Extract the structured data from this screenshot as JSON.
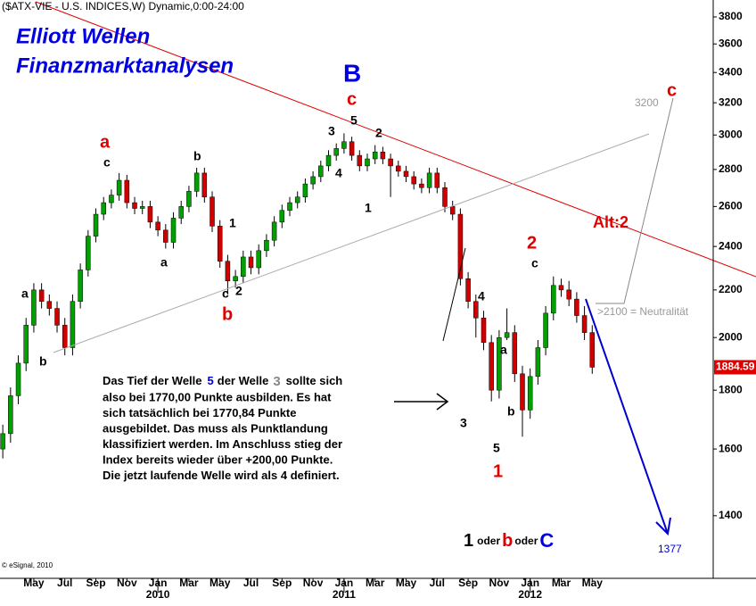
{
  "chart_data": {
    "type": "candlestick",
    "title": "($ATX-VIE - U.S. INDICES,W) Dynamic,0:00-24:00",
    "x": [
      2.0,
      2.5,
      3.0,
      3.5,
      4.0,
      4.5,
      5.0,
      5.5,
      6.0,
      6.5,
      7.0,
      7.5,
      8.0,
      8.5,
      9.0,
      9.5,
      10.0,
      10.5,
      11.0,
      11.5,
      12.0,
      12.5,
      13.0,
      13.5,
      14.0,
      14.5,
      15.0,
      15.5,
      16.0,
      16.5,
      17.0,
      17.5,
      18.0,
      18.5,
      19.0,
      19.5,
      20.0,
      20.5,
      21.0,
      21.5,
      22.0,
      22.5,
      23.0,
      23.5,
      24.0,
      24.5,
      25.0,
      25.5,
      26.0,
      26.5,
      27.0,
      27.5,
      28.0,
      28.5,
      29.0,
      29.5,
      30.0,
      30.5,
      31.0,
      31.5,
      32.0,
      32.5,
      33.0,
      33.5,
      34.0,
      34.5,
      35.0,
      35.5,
      36.0,
      36.5,
      37.0,
      37.5,
      38.0,
      38.5,
      39.0,
      39.5,
      40.0
    ],
    "open": [
      1600,
      1650,
      1780,
      1900,
      2050,
      2200,
      2150,
      2120,
      2050,
      1960,
      2150,
      2290,
      2450,
      2560,
      2620,
      2660,
      2740,
      2620,
      2590,
      2600,
      2520,
      2480,
      2420,
      2540,
      2600,
      2680,
      2780,
      2650,
      2500,
      2330,
      2240,
      2260,
      2350,
      2300,
      2380,
      2430,
      2520,
      2580,
      2620,
      2650,
      2720,
      2760,
      2820,
      2880,
      2920,
      2960,
      2880,
      2820,
      2860,
      2900,
      2860,
      2820,
      2790,
      2760,
      2720,
      2700,
      2780,
      2700,
      2600,
      2560,
      2250,
      2150,
      2080,
      1980,
      1800,
      2000,
      2020,
      1860,
      1730,
      1850,
      1960,
      2100,
      2220,
      2200,
      2160,
      2090,
      2020
    ],
    "high": [
      1680,
      1810,
      1930,
      2080,
      2230,
      2230,
      2180,
      2150,
      2080,
      2180,
      2320,
      2480,
      2590,
      2650,
      2690,
      2780,
      2770,
      2650,
      2630,
      2630,
      2550,
      2510,
      2570,
      2630,
      2710,
      2810,
      2810,
      2680,
      2530,
      2360,
      2290,
      2380,
      2380,
      2410,
      2460,
      2550,
      2610,
      2650,
      2680,
      2750,
      2790,
      2850,
      2910,
      2950,
      3010,
      2990,
      2910,
      2890,
      2940,
      2930,
      2890,
      2850,
      2820,
      2790,
      2750,
      2810,
      2810,
      2730,
      2630,
      2590,
      2280,
      2180,
      2110,
      2010,
      2030,
      2120,
      2050,
      1890,
      1880,
      1990,
      2130,
      2260,
      2250,
      2240,
      2190,
      2130,
      2050
    ],
    "low": [
      1570,
      1620,
      1750,
      1870,
      2020,
      2120,
      2090,
      2020,
      1930,
      1930,
      2120,
      2260,
      2420,
      2530,
      2590,
      2630,
      2590,
      2560,
      2560,
      2490,
      2450,
      2390,
      2390,
      2510,
      2570,
      2650,
      2620,
      2470,
      2300,
      2180,
      2210,
      2230,
      2270,
      2270,
      2350,
      2400,
      2490,
      2550,
      2590,
      2620,
      2690,
      2730,
      2790,
      2850,
      2890,
      2850,
      2790,
      2790,
      2830,
      2830,
      2650,
      2760,
      2730,
      2690,
      2670,
      2670,
      2670,
      2570,
      2530,
      2220,
      2120,
      2000,
      1950,
      1760,
      1770,
      1990,
      1830,
      1640,
      1700,
      1820,
      1930,
      2070,
      2170,
      2130,
      2060,
      1990,
      1860
    ],
    "close": [
      1650,
      1780,
      1900,
      2050,
      2200,
      2150,
      2120,
      2050,
      1960,
      2150,
      2290,
      2450,
      2560,
      2620,
      2660,
      2740,
      2620,
      2590,
      2600,
      2520,
      2480,
      2420,
      2540,
      2600,
      2680,
      2780,
      2650,
      2500,
      2330,
      2240,
      2260,
      2350,
      2300,
      2380,
      2430,
      2520,
      2580,
      2620,
      2650,
      2720,
      2760,
      2820,
      2880,
      2920,
      2960,
      2880,
      2820,
      2860,
      2900,
      2860,
      2820,
      2790,
      2760,
      2720,
      2700,
      2780,
      2700,
      2600,
      2560,
      2250,
      2150,
      2080,
      1980,
      1800,
      2000,
      2020,
      1860,
      1730,
      1850,
      1960,
      2100,
      2220,
      2200,
      2160,
      2090,
      2020,
      1884.59
    ],
    "up_color": "#00a000",
    "down_color": "#d00000",
    "log_scale": true,
    "xlim": [
      1.82,
      47.8
    ],
    "ylim": [
      1235,
      3931
    ],
    "yticks": [
      1400,
      1600,
      1800,
      2000,
      2200,
      2400,
      2600,
      2800,
      3000,
      3200,
      3400,
      3600,
      3800
    ],
    "xticks": [
      {
        "value": 4,
        "label": "May"
      },
      {
        "value": 6,
        "label": "Jul"
      },
      {
        "value": 8,
        "label": "Sep"
      },
      {
        "value": 10,
        "label": "Nov"
      },
      {
        "value": 12,
        "label": "Jan"
      },
      {
        "value": 14,
        "label": "Mar"
      },
      {
        "value": 16,
        "label": "May"
      },
      {
        "value": 18,
        "label": "Jul"
      },
      {
        "value": 20,
        "label": "Sep"
      },
      {
        "value": 22,
        "label": "Nov"
      },
      {
        "value": 24,
        "label": "Jan"
      },
      {
        "value": 26,
        "label": "Mar"
      },
      {
        "value": 28,
        "label": "May"
      },
      {
        "value": 30,
        "label": "Jul"
      },
      {
        "value": 32,
        "label": "Sep"
      },
      {
        "value": 34,
        "label": "Nov"
      },
      {
        "value": 36,
        "label": "Jan"
      },
      {
        "value": 38,
        "label": "Mar"
      },
      {
        "value": 40,
        "label": "May"
      }
    ],
    "year_labels": [
      {
        "value": 12,
        "label": "2010"
      },
      {
        "value": 24,
        "label": "2011"
      },
      {
        "value": 36,
        "label": "2012"
      }
    ],
    "last_price": 1884.59,
    "annotations": [
      "Elliott Wellen",
      "Finanzmarktanalysen",
      "B",
      "c",
      "5",
      "3",
      "2",
      "4",
      "1",
      "a",
      "c",
      "b",
      "a",
      "1",
      "c",
      "2",
      "b",
      "a",
      "b",
      "3200",
      "c",
      "Alt:2",
      "2",
      "c",
      "4",
      "a",
      "b",
      "3",
      "5",
      "1",
      ">2100 = Neutralität",
      "1377",
      "© eSignal, 2010"
    ],
    "note": {
      "first": [
        "Das Tief der Welle",
        "5",
        "der Welle",
        "3",
        "sollte sich"
      ],
      "lines": [
        "also bei 1770,00 Punkte ausbilden. Es hat",
        "sich tatsächlich bei 1770,84 Punkte",
        "ausgebildet. Das muss als Punktlandung",
        "klassifiziert werden. Im Anschluss stieg der",
        "Index bereits wieder über +200,00 Punkte.",
        "Die jetzt laufende Welle wird als 4 definiert."
      ]
    },
    "wave_choice": [
      "1",
      "oder",
      "b",
      "oder",
      "C"
    ]
  }
}
